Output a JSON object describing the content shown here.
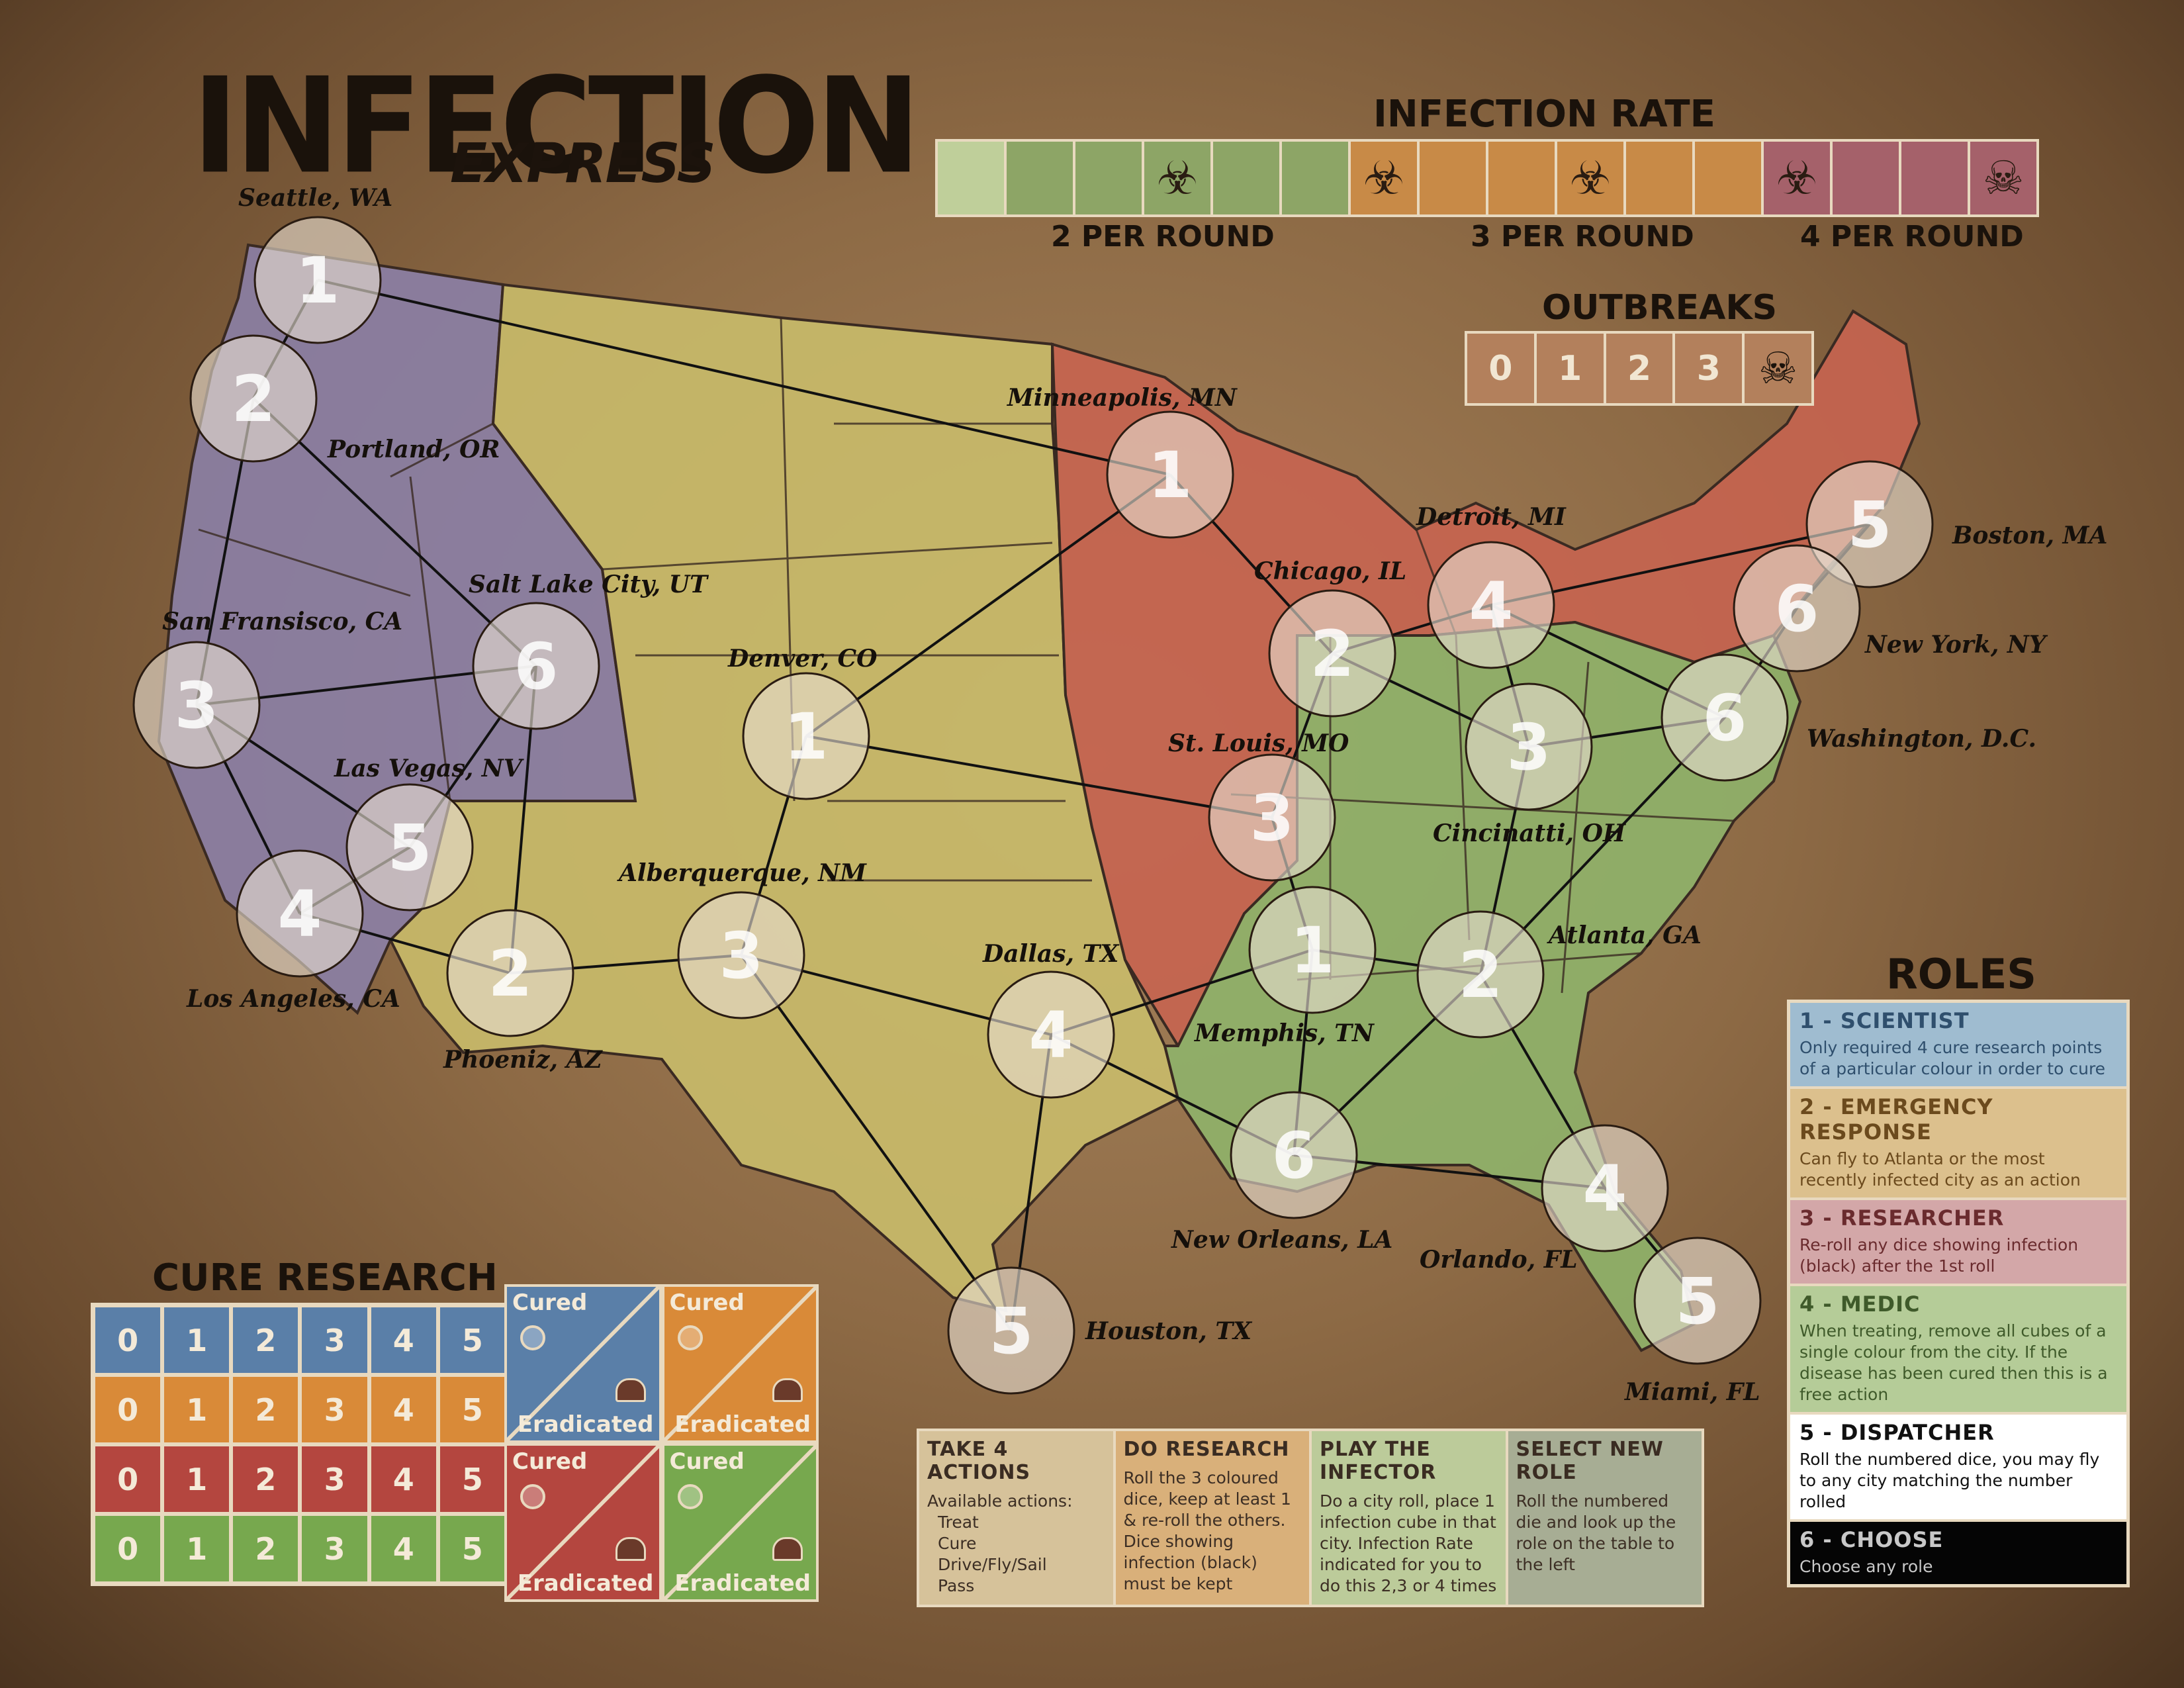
{
  "title": {
    "main": "INFECTION",
    "sub": "EXPRESS"
  },
  "infection_rate": {
    "heading": "INFECTION RATE",
    "labels": [
      "2 PER ROUND",
      "3 PER ROUND",
      "4 PER ROUND"
    ],
    "cells": [
      {
        "color": "#bfcf9a",
        "icon": ""
      },
      {
        "color": "#8da566",
        "icon": ""
      },
      {
        "color": "#8da566",
        "icon": ""
      },
      {
        "color": "#8da566",
        "icon": "☣"
      },
      {
        "color": "#8da566",
        "icon": ""
      },
      {
        "color": "#8da566",
        "icon": ""
      },
      {
        "color": "#c88a47",
        "icon": "☣"
      },
      {
        "color": "#c88a47",
        "icon": ""
      },
      {
        "color": "#c88a47",
        "icon": ""
      },
      {
        "color": "#c88a47",
        "icon": "☣"
      },
      {
        "color": "#c88a47",
        "icon": ""
      },
      {
        "color": "#c88a47",
        "icon": ""
      },
      {
        "color": "#a5616a",
        "icon": "☣"
      },
      {
        "color": "#a5616a",
        "icon": ""
      },
      {
        "color": "#a5616a",
        "icon": ""
      },
      {
        "color": "#a5616a",
        "icon": "☠"
      }
    ]
  },
  "outbreaks": {
    "heading": "OUTBREAKS",
    "cells": [
      "0",
      "1",
      "2",
      "3",
      "☠"
    ]
  },
  "cities": [
    {
      "label": "Seattle, WA",
      "num": "1"
    },
    {
      "label": "Portland, OR",
      "num": "2"
    },
    {
      "label": "San Fransisco, CA",
      "num": "3"
    },
    {
      "label": "Los Angeles, CA",
      "num": "4"
    },
    {
      "label": "Las Vegas, NV",
      "num": "5"
    },
    {
      "label": "Salt Lake City, UT",
      "num": "6"
    },
    {
      "label": "Denver, CO",
      "num": "1"
    },
    {
      "label": "Phoeniz, AZ",
      "num": "2"
    },
    {
      "label": "Alberquerque, NM",
      "num": "3"
    },
    {
      "label": "Dallas, TX",
      "num": "4"
    },
    {
      "label": "Houston, TX",
      "num": "5"
    },
    {
      "label": "New Orleans, LA",
      "num": "6"
    },
    {
      "label": "Minneapolis, MN",
      "num": "1"
    },
    {
      "label": "Chicago, IL",
      "num": "2"
    },
    {
      "label": "St. Louis, MO",
      "num": "3"
    },
    {
      "label": "Detroit, MI",
      "num": "4"
    },
    {
      "label": "Boston, MA",
      "num": "5"
    },
    {
      "label": "New York, NY",
      "num": "6"
    },
    {
      "label": "Memphis, TN",
      "num": "1"
    },
    {
      "label": "Atlanta, GA",
      "num": "2"
    },
    {
      "label": "Cincinatti, OH",
      "num": "3"
    },
    {
      "label": "Orlando, FL",
      "num": "4"
    },
    {
      "label": "Miami, FL",
      "num": "5"
    },
    {
      "label": "Washington, D.C.",
      "num": "6"
    }
  ],
  "cure_research": {
    "heading": "CURE RESEARCH",
    "rows": [
      {
        "color": "#5a7fa8",
        "cells": [
          "0",
          "1",
          "2",
          "3",
          "4",
          "5"
        ]
      },
      {
        "color": "#d98a38",
        "cells": [
          "0",
          "1",
          "2",
          "3",
          "4",
          "5"
        ]
      },
      {
        "color": "#b4463f",
        "cells": [
          "0",
          "1",
          "2",
          "3",
          "4",
          "5"
        ]
      },
      {
        "color": "#77a84e",
        "cells": [
          "0",
          "1",
          "2",
          "3",
          "4",
          "5"
        ]
      }
    ],
    "boxes": [
      {
        "color": "#5a7fa8",
        "cured": "Cured",
        "eradicated": "Eradicated"
      },
      {
        "color": "#d98a38",
        "cured": "Cured",
        "eradicated": "Eradicated"
      },
      {
        "color": "#b4463f",
        "cured": "Cured",
        "eradicated": "Eradicated"
      },
      {
        "color": "#77a84e",
        "cured": "Cured",
        "eradicated": "Eradicated"
      }
    ]
  },
  "roles": {
    "heading": "ROLES",
    "items": [
      {
        "title": "1 - SCIENTIST",
        "desc": "Only required 4 cure research points of a particular colour in order to cure",
        "bg": "#9fbcd0",
        "fg": "#2f4f6d"
      },
      {
        "title": "2 - EMERGENCY RESPONSE",
        "desc": "Can fly to Atlanta or the most recently infected city as an action",
        "bg": "#dcc08d",
        "fg": "#6b4a1d"
      },
      {
        "title": "3 - RESEARCHER",
        "desc": "Re-roll any dice showing infection (black) after the 1st roll",
        "bg": "#d3a7a8",
        "fg": "#6a2b2e"
      },
      {
        "title": "4 - MEDIC",
        "desc": "When treating, remove all cubes of a single colour from the city. If the disease has been cured then this is a free action",
        "bg": "#b5cc98",
        "fg": "#3f5a2a"
      },
      {
        "title": "5 - DISPATCHER",
        "desc": "Roll the numbered dice, you may fly to any city matching the number rolled",
        "bg": "#ffffff",
        "fg": "#111111"
      },
      {
        "title": "6 - CHOOSE",
        "desc": "Choose any role",
        "bg": "#050505",
        "fg": "#c8c8c8"
      }
    ]
  },
  "steps": [
    {
      "title": "TAKE 4 ACTIONS",
      "lines": [
        "Available actions:",
        "Treat",
        "Cure",
        "Drive/Fly/Sail",
        "Pass"
      ],
      "bg": "#d6c29a"
    },
    {
      "title": "DO RESEARCH",
      "lines": [
        "Roll the 3 coloured dice, keep at least 1 & re-roll the others. Dice showing infection (black) must be kept"
      ],
      "bg": "#d9b07a"
    },
    {
      "title": "PLAY THE INFECTOR",
      "lines": [
        "Do a city roll, place 1 infection cube in that city. Infection Rate indicated for you to do this 2,3 or 4 times"
      ],
      "bg": "#bccb9a"
    },
    {
      "title": "SELECT NEW ROLE",
      "lines": [
        "Roll the numbered die and look up the role on the table to the left"
      ],
      "bg": "#a7ad94"
    }
  ]
}
